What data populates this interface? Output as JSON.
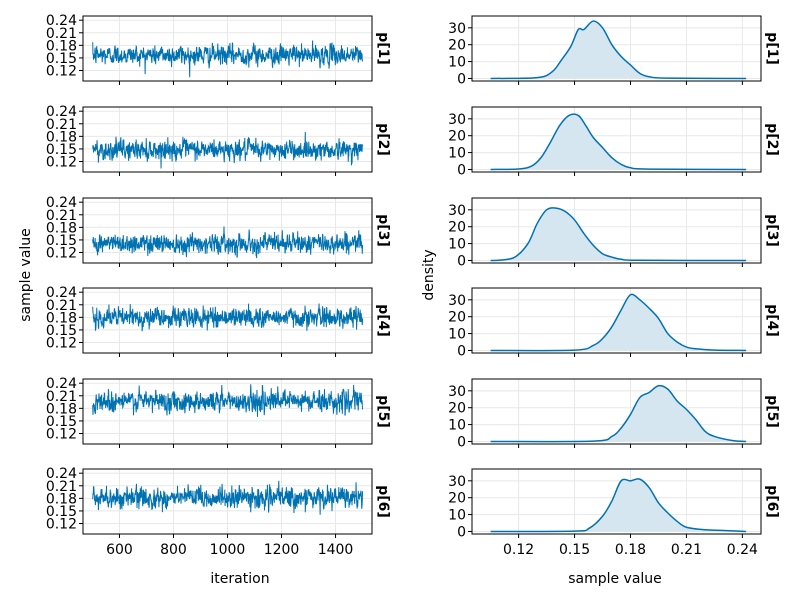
{
  "chart_data": [
    {
      "type": "line",
      "kind": "trace",
      "xlabel": "iteration",
      "ylabel": "sample value",
      "xlim": [
        465,
        1535
      ],
      "ylim": [
        0.095,
        0.25
      ],
      "xticks": [
        600,
        800,
        1000,
        1200,
        1400
      ],
      "yticks": [
        0.12,
        0.15,
        0.18,
        0.21,
        0.24
      ],
      "xtick_labels": [
        "600",
        "800",
        "1000",
        "1200",
        "1400"
      ],
      "ytick_labels": [
        "0.12",
        "0.15",
        "0.18",
        "0.21",
        "0.24"
      ],
      "iterations": [
        501,
        1500
      ],
      "color": "#0072b2",
      "grid": true,
      "series": [
        {
          "label": "p[1]",
          "mean": 0.157,
          "sd": 0.011
        },
        {
          "label": "p[2]",
          "mean": 0.148,
          "sd": 0.011
        },
        {
          "label": "p[3]",
          "mean": 0.142,
          "sd": 0.011
        },
        {
          "label": "p[4]",
          "mean": 0.18,
          "sd": 0.011
        },
        {
          "label": "p[5]",
          "mean": 0.197,
          "sd": 0.012
        },
        {
          "label": "p[6]",
          "mean": 0.181,
          "sd": 0.012
        }
      ]
    },
    {
      "type": "area",
      "kind": "density",
      "xlabel": "sample value",
      "ylabel": "density",
      "xlim": [
        0.095,
        0.25
      ],
      "xticks": [
        0.12,
        0.15,
        0.18,
        0.21,
        0.24
      ],
      "xtick_labels": [
        "0.12",
        "0.15",
        "0.18",
        "0.21",
        "0.24"
      ],
      "color": "#0072b2",
      "fill_color": "#d6e6f0",
      "grid": true,
      "series": [
        {
          "label": "p[1]",
          "yticks": [
            0,
            10,
            20,
            30
          ],
          "ytick_labels": [
            "0",
            "10",
            "20",
            "30"
          ],
          "ylim": [
            -1.5,
            37
          ],
          "x": [
            0.105,
            0.13,
            0.138,
            0.143,
            0.148,
            0.152,
            0.155,
            0.16,
            0.165,
            0.17,
            0.175,
            0.18,
            0.185,
            0.19,
            0.2,
            0.242
          ],
          "y": [
            0,
            0.5,
            4,
            11,
            19,
            29,
            29,
            34,
            30,
            20,
            13,
            8,
            3,
            1,
            0.2,
            0
          ]
        },
        {
          "label": "p[2]",
          "yticks": [
            0,
            10,
            20,
            30
          ],
          "ytick_labels": [
            "0",
            "10",
            "20",
            "30"
          ],
          "ylim": [
            -1.5,
            37
          ],
          "x": [
            0.105,
            0.12,
            0.127,
            0.132,
            0.137,
            0.142,
            0.147,
            0.152,
            0.156,
            0.16,
            0.165,
            0.17,
            0.175,
            0.18,
            0.19,
            0.242
          ],
          "y": [
            0,
            0.3,
            2,
            7,
            16,
            26,
            32,
            32,
            26,
            19,
            13,
            7,
            3,
            1,
            0.2,
            0
          ]
        },
        {
          "label": "p[3]",
          "yticks": [
            0,
            10,
            20,
            30
          ],
          "ytick_labels": [
            "0",
            "10",
            "20",
            "30"
          ],
          "ylim": [
            -1.5,
            37
          ],
          "x": [
            0.105,
            0.11,
            0.118,
            0.125,
            0.13,
            0.135,
            0.14,
            0.145,
            0.15,
            0.155,
            0.16,
            0.165,
            0.17,
            0.175,
            0.185,
            0.242
          ],
          "y": [
            0,
            0.2,
            2,
            10,
            22,
            30,
            31,
            29,
            24,
            16,
            9,
            4,
            2,
            0.7,
            0.1,
            0
          ]
        },
        {
          "label": "p[4]",
          "yticks": [
            0,
            10,
            20,
            30
          ],
          "ytick_labels": [
            "0",
            "10",
            "20",
            "30"
          ],
          "ylim": [
            -1.5,
            37
          ],
          "x": [
            0.105,
            0.15,
            0.16,
            0.165,
            0.17,
            0.175,
            0.18,
            0.185,
            0.19,
            0.195,
            0.2,
            0.205,
            0.21,
            0.215,
            0.225,
            0.242
          ],
          "y": [
            0,
            0.2,
            3,
            7,
            14,
            24,
            33,
            30,
            25,
            19,
            10,
            5,
            2,
            1,
            0.2,
            0
          ]
        },
        {
          "label": "p[5]",
          "yticks": [
            0,
            10,
            20,
            30
          ],
          "ytick_labels": [
            "0",
            "10",
            "20",
            "30"
          ],
          "ylim": [
            -1.5,
            37
          ],
          "x": [
            0.105,
            0.16,
            0.17,
            0.175,
            0.18,
            0.185,
            0.19,
            0.195,
            0.2,
            0.205,
            0.21,
            0.215,
            0.22,
            0.225,
            0.235,
            0.242
          ],
          "y": [
            0,
            0.2,
            3,
            8,
            16,
            26,
            29,
            33,
            31,
            24,
            19,
            13,
            6,
            3,
            0.5,
            0
          ]
        },
        {
          "label": "p[6]",
          "yticks": [
            0,
            10,
            20,
            30
          ],
          "ytick_labels": [
            "0",
            "10",
            "20",
            "30"
          ],
          "ylim": [
            -1.5,
            37
          ],
          "x": [
            0.105,
            0.15,
            0.158,
            0.165,
            0.17,
            0.175,
            0.18,
            0.185,
            0.19,
            0.195,
            0.2,
            0.205,
            0.21,
            0.22,
            0.23,
            0.242
          ],
          "y": [
            0,
            0.2,
            2,
            9,
            18,
            30,
            30,
            31,
            26,
            17,
            11,
            6,
            2.5,
            1,
            0.6,
            0
          ]
        }
      ]
    }
  ]
}
